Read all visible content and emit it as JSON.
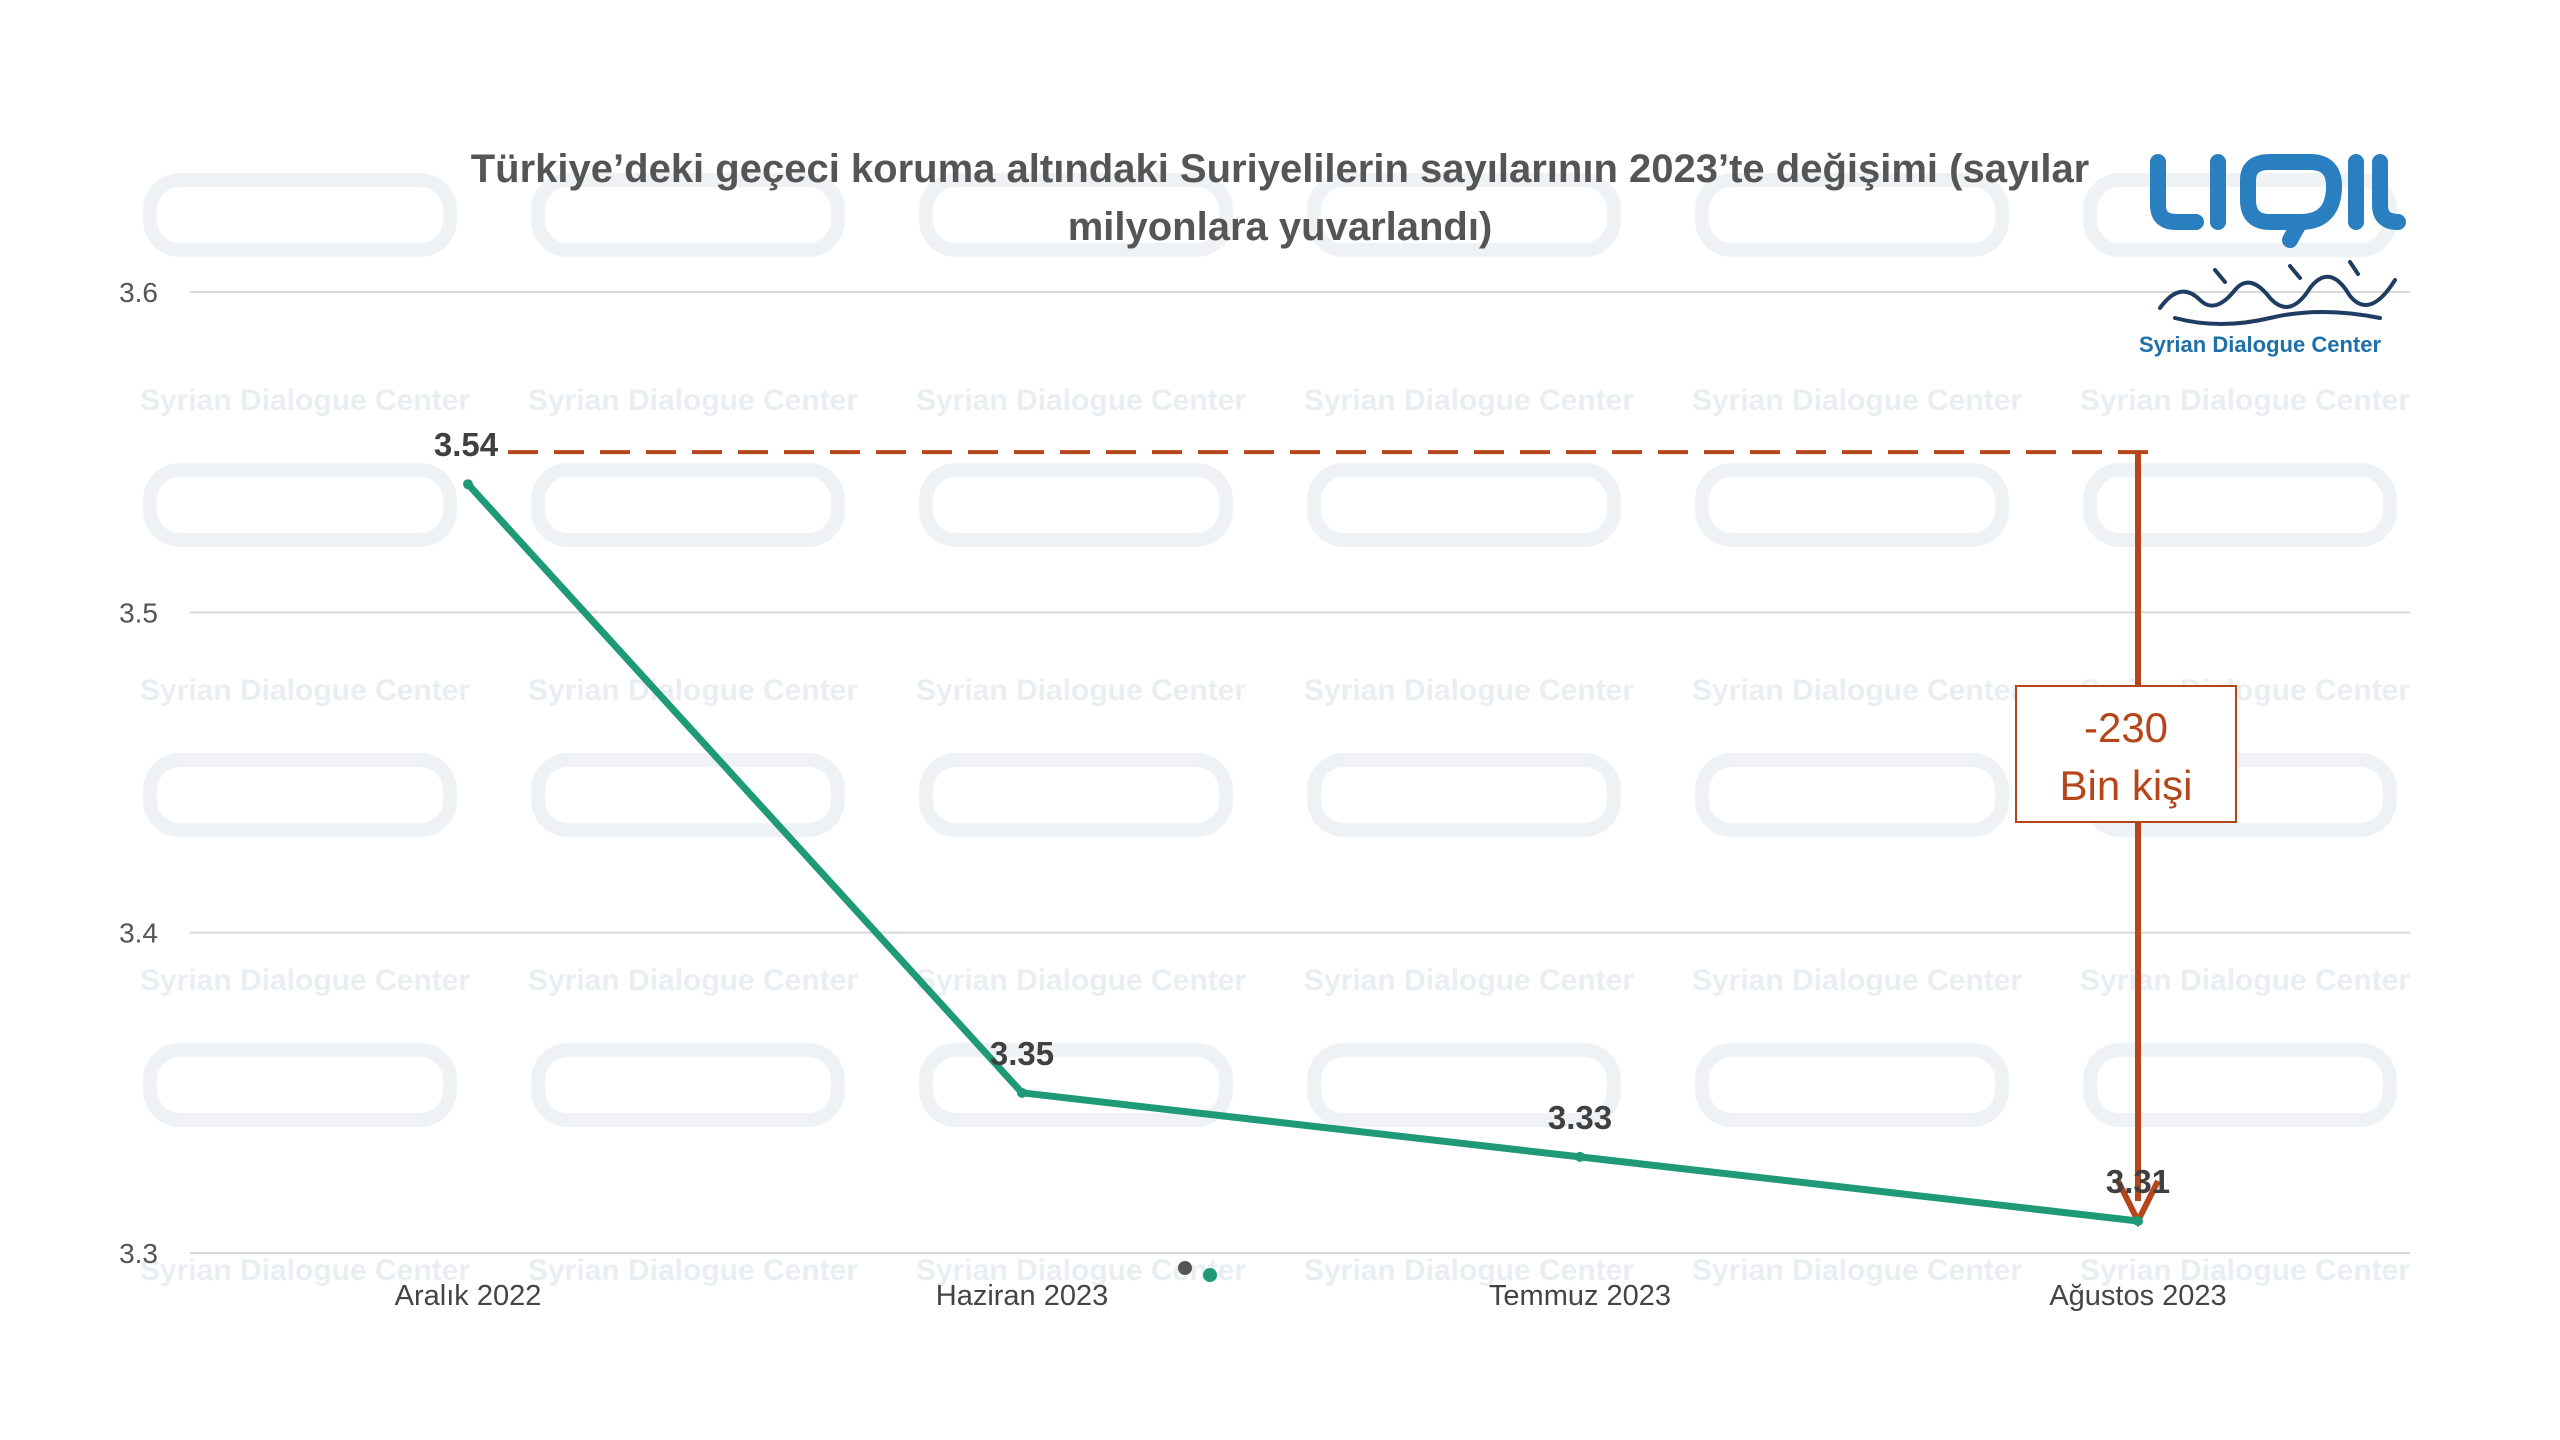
{
  "chart_data": {
    "type": "line",
    "title_lines": [
      "Türkiye’deki geçeci koruma altındaki Suriyelilerin sayılarının 2023’te değişimi (sayılar",
      "milyonlara yuvarlandı)"
    ],
    "categories": [
      "Aralık 2022",
      "Haziran 2023",
      "Temmuz 2023",
      "Ağustos 2023"
    ],
    "series": [
      {
        "values": [
          3.54,
          3.35,
          3.33,
          3.31
        ],
        "data_labels": [
          "3.54",
          "3.35",
          "3.33",
          "3.31"
        ],
        "color": "#1e9a76"
      }
    ],
    "ylim": [
      3.3,
      3.6
    ],
    "yticks": [
      "3.3",
      "3.4",
      "3.5",
      "3.6"
    ],
    "grid": true,
    "reference_line": {
      "value": 3.55,
      "style": "dashed",
      "color": "#b5451b"
    },
    "annotation": {
      "value_text": "-230",
      "unit_text": "Bin kişi",
      "color": "#b5451b"
    }
  },
  "logo": {
    "text": "Syrian Dialogue Center",
    "color": "#1f6fa8"
  },
  "watermark": {
    "text": "Syrian Dialogue Center"
  }
}
